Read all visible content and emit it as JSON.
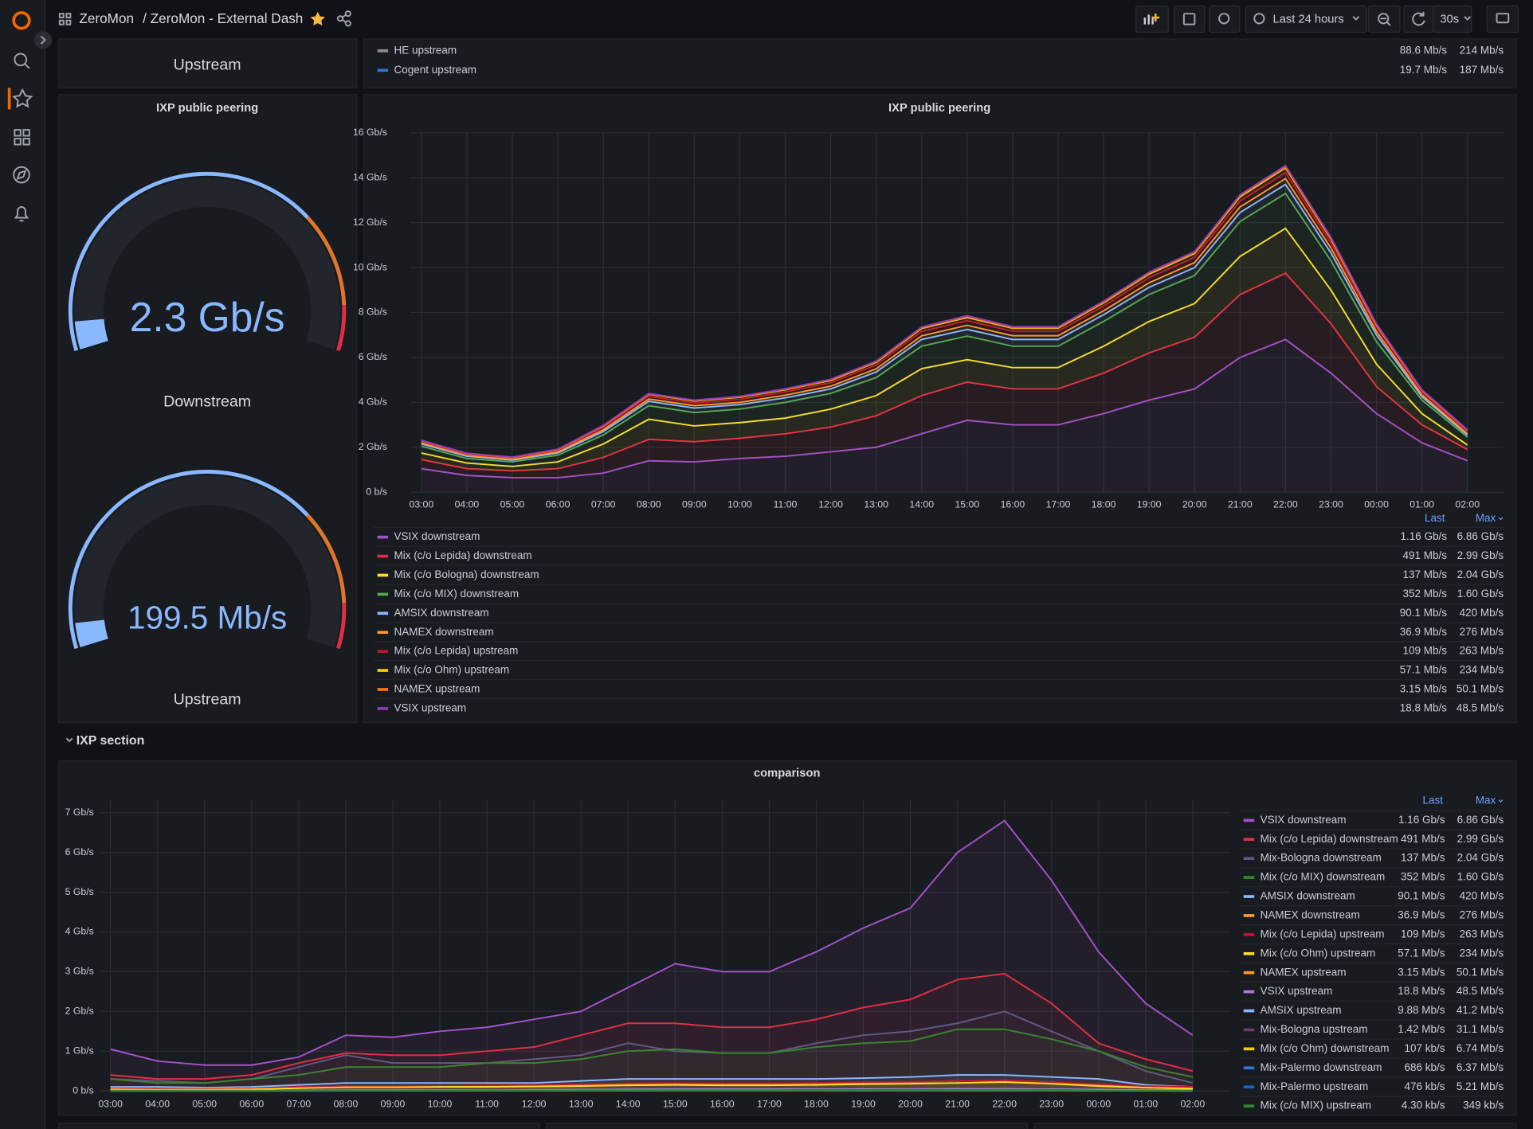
{
  "header": {
    "breadcrumb": "ZeroMon",
    "title": "/ ZeroMon - External Dash",
    "time_range": "Last 24 hours",
    "refresh": "30s"
  },
  "top_row": {
    "gauge_label": "Upstream",
    "legend": [
      {
        "name": "HE upstream",
        "color": "#8e8e8e",
        "last": "88.6 Mb/s",
        "max": "214 Mb/s"
      },
      {
        "name": "Cogent upstream",
        "color": "#3274d9",
        "last": "19.7 Mb/s",
        "max": "187 Mb/s"
      }
    ]
  },
  "gauges": {
    "title": "IXP public peering",
    "items": [
      {
        "value": 2.3,
        "value_label": "2.3 Gb/s",
        "max": 40,
        "label": "Downstream"
      },
      {
        "value": 199.5,
        "value_label": "199.5 Mb/s",
        "max": 4000,
        "label": "Upstream"
      }
    ]
  },
  "section": {
    "title": "IXP section"
  },
  "chart_data": [
    {
      "type": "line",
      "stacked": true,
      "title": "IXP public peering",
      "legend_headers": [
        "Last",
        "Max"
      ],
      "categories": [
        "03:00",
        "04:00",
        "05:00",
        "06:00",
        "07:00",
        "08:00",
        "09:00",
        "10:00",
        "11:00",
        "12:00",
        "13:00",
        "14:00",
        "15:00",
        "16:00",
        "17:00",
        "18:00",
        "19:00",
        "20:00",
        "21:00",
        "22:00",
        "23:00",
        "00:00",
        "01:00",
        "02:00"
      ],
      "ylim": [
        0,
        16
      ],
      "yticks": [
        {
          "value": 0,
          "label": "0 b/s"
        },
        {
          "value": 2,
          "label": "2 Gb/s"
        },
        {
          "value": 4,
          "label": "4 Gb/s"
        },
        {
          "value": 6,
          "label": "6 Gb/s"
        },
        {
          "value": 8,
          "label": "8 Gb/s"
        },
        {
          "value": 10,
          "label": "10 Gb/s"
        },
        {
          "value": 12,
          "label": "12 Gb/s"
        },
        {
          "value": 14,
          "label": "14 Gb/s"
        },
        {
          "value": 16,
          "label": "16 Gb/s"
        }
      ],
      "series": [
        {
          "name": "VSIX downstream",
          "color": "#a352cc",
          "last": "1.16 Gb/s",
          "max": "6.86 Gb/s",
          "values": [
            1.05,
            0.75,
            0.65,
            0.65,
            0.85,
            1.4,
            1.35,
            1.5,
            1.6,
            1.8,
            2.0,
            2.6,
            3.2,
            3.0,
            3.0,
            3.5,
            4.1,
            4.6,
            6.0,
            6.8,
            5.3,
            3.5,
            2.2,
            1.4
          ]
        },
        {
          "name": "Mix (c/o Lepida) downstream",
          "color": "#e02f44",
          "last": "491 Mb/s",
          "max": "2.99 Gb/s",
          "values": [
            0.4,
            0.3,
            0.3,
            0.4,
            0.7,
            0.95,
            0.9,
            0.9,
            1.0,
            1.1,
            1.4,
            1.7,
            1.7,
            1.6,
            1.6,
            1.8,
            2.1,
            2.3,
            2.8,
            2.95,
            2.2,
            1.2,
            0.8,
            0.5
          ]
        },
        {
          "name": "Mix (c/o Bologna) downstream",
          "color": "#fade2a",
          "last": "137 Mb/s",
          "max": "2.04 Gb/s",
          "values": [
            0.3,
            0.25,
            0.2,
            0.3,
            0.6,
            0.9,
            0.7,
            0.7,
            0.7,
            0.8,
            0.9,
            1.2,
            1.0,
            0.95,
            0.95,
            1.2,
            1.4,
            1.5,
            1.7,
            2.0,
            1.5,
            1.0,
            0.5,
            0.2
          ]
        },
        {
          "name": "Mix (c/o MIX) downstream",
          "color": "#56a64b",
          "last": "352 Mb/s",
          "max": "1.60 Gb/s",
          "values": [
            0.3,
            0.2,
            0.2,
            0.3,
            0.4,
            0.6,
            0.6,
            0.6,
            0.7,
            0.7,
            0.8,
            1.0,
            1.05,
            0.95,
            0.95,
            1.1,
            1.2,
            1.25,
            1.55,
            1.55,
            1.3,
            1.0,
            0.6,
            0.35
          ]
        },
        {
          "name": "AMSIX downstream",
          "color": "#8ab8ff",
          "last": "90.1 Mb/s",
          "max": "420 Mb/s",
          "values": [
            0.1,
            0.1,
            0.08,
            0.1,
            0.15,
            0.2,
            0.2,
            0.2,
            0.2,
            0.2,
            0.25,
            0.3,
            0.3,
            0.3,
            0.3,
            0.3,
            0.32,
            0.35,
            0.4,
            0.4,
            0.35,
            0.3,
            0.15,
            0.1
          ]
        },
        {
          "name": "NAMEX downstream",
          "color": "#ff9830",
          "last": "36.9 Mb/s",
          "max": "276 Mb/s",
          "values": [
            0.05,
            0.04,
            0.04,
            0.05,
            0.08,
            0.1,
            0.1,
            0.1,
            0.12,
            0.12,
            0.14,
            0.16,
            0.18,
            0.17,
            0.17,
            0.18,
            0.2,
            0.22,
            0.25,
            0.26,
            0.22,
            0.15,
            0.08,
            0.05
          ]
        },
        {
          "name": "Mix (c/o Lepida) upstream",
          "color": "#c4162a",
          "last": "109 Mb/s",
          "max": "263 Mb/s",
          "values": [
            0.06,
            0.05,
            0.05,
            0.06,
            0.1,
            0.12,
            0.12,
            0.13,
            0.14,
            0.15,
            0.17,
            0.19,
            0.2,
            0.19,
            0.19,
            0.2,
            0.22,
            0.23,
            0.25,
            0.26,
            0.22,
            0.17,
            0.12,
            0.1
          ]
        },
        {
          "name": "Mix (c/o Ohm) upstream",
          "color": "#f2cc0c",
          "last": "57.1 Mb/s",
          "max": "234 Mb/s",
          "values": [
            0.04,
            0.03,
            0.03,
            0.04,
            0.07,
            0.09,
            0.09,
            0.1,
            0.1,
            0.11,
            0.12,
            0.14,
            0.15,
            0.14,
            0.14,
            0.15,
            0.17,
            0.18,
            0.2,
            0.22,
            0.18,
            0.12,
            0.08,
            0.06
          ]
        },
        {
          "name": "NAMEX upstream",
          "color": "#ff780a",
          "last": "3.15 Mb/s",
          "max": "50.1 Mb/s",
          "values": [
            0.005,
            0.005,
            0.005,
            0.006,
            0.01,
            0.015,
            0.02,
            0.02,
            0.02,
            0.025,
            0.03,
            0.03,
            0.035,
            0.03,
            0.03,
            0.035,
            0.04,
            0.04,
            0.045,
            0.05,
            0.04,
            0.02,
            0.01,
            0.005
          ]
        },
        {
          "name": "VSIX upstream",
          "color": "#8f3bb8",
          "last": "18.8 Mb/s",
          "max": "48.5 Mb/s",
          "values": [
            0.01,
            0.01,
            0.01,
            0.01,
            0.015,
            0.02,
            0.02,
            0.02,
            0.025,
            0.025,
            0.03,
            0.035,
            0.04,
            0.04,
            0.04,
            0.04,
            0.045,
            0.045,
            0.048,
            0.048,
            0.04,
            0.03,
            0.02,
            0.02
          ]
        }
      ]
    },
    {
      "type": "line",
      "stacked": false,
      "title": "comparison",
      "legend_headers": [
        "Last",
        "Max"
      ],
      "categories": [
        "03:00",
        "04:00",
        "05:00",
        "06:00",
        "07:00",
        "08:00",
        "09:00",
        "10:00",
        "11:00",
        "12:00",
        "13:00",
        "14:00",
        "15:00",
        "16:00",
        "17:00",
        "18:00",
        "19:00",
        "20:00",
        "21:00",
        "22:00",
        "23:00",
        "00:00",
        "01:00",
        "02:00"
      ],
      "ylim": [
        0,
        7.3
      ],
      "yticks": [
        {
          "value": 0,
          "label": "0 b/s"
        },
        {
          "value": 1,
          "label": "1 Gb/s"
        },
        {
          "value": 2,
          "label": "2 Gb/s"
        },
        {
          "value": 3,
          "label": "3 Gb/s"
        },
        {
          "value": 4,
          "label": "4 Gb/s"
        },
        {
          "value": 5,
          "label": "5 Gb/s"
        },
        {
          "value": 6,
          "label": "6 Gb/s"
        },
        {
          "value": 7,
          "label": "7 Gb/s"
        }
      ],
      "series": [
        {
          "name": "VSIX downstream",
          "color": "#a352cc",
          "last": "1.16 Gb/s",
          "max": "6.86 Gb/s",
          "values": [
            1.05,
            0.75,
            0.65,
            0.65,
            0.85,
            1.4,
            1.35,
            1.5,
            1.6,
            1.8,
            2.0,
            2.6,
            3.2,
            3.0,
            3.0,
            3.5,
            4.1,
            4.6,
            6.0,
            6.8,
            5.3,
            3.5,
            2.2,
            1.4
          ]
        },
        {
          "name": "Mix (c/o Lepida) downstream",
          "color": "#e02f44",
          "last": "491 Mb/s",
          "max": "2.99 Gb/s",
          "values": [
            0.4,
            0.3,
            0.3,
            0.4,
            0.7,
            0.95,
            0.9,
            0.9,
            1.0,
            1.1,
            1.4,
            1.7,
            1.7,
            1.6,
            1.6,
            1.8,
            2.1,
            2.3,
            2.8,
            2.95,
            2.2,
            1.2,
            0.8,
            0.5
          ]
        },
        {
          "name": "Mix-Bologna downstream",
          "color": "#5f5a83",
          "last": "137 Mb/s",
          "max": "2.04 Gb/s",
          "values": [
            0.3,
            0.25,
            0.2,
            0.3,
            0.6,
            0.9,
            0.7,
            0.7,
            0.7,
            0.8,
            0.9,
            1.2,
            1.0,
            0.95,
            0.95,
            1.2,
            1.4,
            1.5,
            1.7,
            2.0,
            1.5,
            1.0,
            0.5,
            0.2
          ]
        },
        {
          "name": "Mix (c/o MIX) downstream",
          "color": "#37872d",
          "last": "352 Mb/s",
          "max": "1.60 Gb/s",
          "values": [
            0.3,
            0.2,
            0.2,
            0.3,
            0.4,
            0.6,
            0.6,
            0.6,
            0.7,
            0.7,
            0.8,
            1.0,
            1.05,
            0.95,
            0.95,
            1.1,
            1.2,
            1.25,
            1.55,
            1.55,
            1.3,
            1.0,
            0.6,
            0.35
          ]
        },
        {
          "name": "AMSIX downstream",
          "color": "#8ab8ff",
          "last": "90.1 Mb/s",
          "max": "420 Mb/s",
          "values": [
            0.1,
            0.1,
            0.08,
            0.1,
            0.15,
            0.2,
            0.2,
            0.2,
            0.2,
            0.2,
            0.25,
            0.3,
            0.3,
            0.3,
            0.3,
            0.3,
            0.32,
            0.35,
            0.4,
            0.4,
            0.35,
            0.3,
            0.15,
            0.1
          ]
        },
        {
          "name": "NAMEX downstream",
          "color": "#ff9830",
          "last": "36.9 Mb/s",
          "max": "276 Mb/s",
          "values": [
            0.05,
            0.04,
            0.04,
            0.05,
            0.08,
            0.1,
            0.1,
            0.1,
            0.12,
            0.12,
            0.14,
            0.16,
            0.18,
            0.17,
            0.17,
            0.18,
            0.2,
            0.22,
            0.25,
            0.26,
            0.22,
            0.15,
            0.08,
            0.05
          ]
        },
        {
          "name": "Mix (c/o Lepida) upstream",
          "color": "#c4162a",
          "last": "109 Mb/s",
          "max": "263 Mb/s",
          "values": [
            0.06,
            0.05,
            0.05,
            0.06,
            0.1,
            0.12,
            0.12,
            0.13,
            0.14,
            0.15,
            0.17,
            0.19,
            0.2,
            0.19,
            0.19,
            0.2,
            0.22,
            0.23,
            0.25,
            0.26,
            0.22,
            0.17,
            0.12,
            0.1
          ]
        },
        {
          "name": "Mix (c/o Ohm) upstream",
          "color": "#fade2a",
          "last": "57.1 Mb/s",
          "max": "234 Mb/s",
          "values": [
            0.04,
            0.03,
            0.03,
            0.04,
            0.07,
            0.09,
            0.09,
            0.1,
            0.1,
            0.11,
            0.12,
            0.14,
            0.15,
            0.14,
            0.14,
            0.15,
            0.17,
            0.18,
            0.2,
            0.22,
            0.18,
            0.12,
            0.08,
            0.06
          ]
        },
        {
          "name": "NAMEX upstream",
          "color": "#ff9830",
          "last": "3.15 Mb/s",
          "max": "50.1 Mb/s",
          "values": [
            0.005,
            0.005,
            0.005,
            0.006,
            0.01,
            0.015,
            0.02,
            0.02,
            0.02,
            0.025,
            0.03,
            0.03,
            0.035,
            0.03,
            0.03,
            0.035,
            0.04,
            0.04,
            0.045,
            0.05,
            0.04,
            0.02,
            0.01,
            0.005
          ]
        },
        {
          "name": "VSIX upstream",
          "color": "#b877d9",
          "last": "18.8 Mb/s",
          "max": "48.5 Mb/s",
          "values": [
            0.01,
            0.01,
            0.01,
            0.01,
            0.015,
            0.02,
            0.02,
            0.02,
            0.025,
            0.025,
            0.03,
            0.035,
            0.04,
            0.04,
            0.04,
            0.04,
            0.045,
            0.045,
            0.048,
            0.048,
            0.04,
            0.03,
            0.02,
            0.02
          ]
        },
        {
          "name": "AMSIX upstream",
          "color": "#8ab8ff",
          "last": "9.88 Mb/s",
          "max": "41.2 Mb/s",
          "values": [
            0.01,
            0.008,
            0.008,
            0.01,
            0.015,
            0.02,
            0.02,
            0.02,
            0.02,
            0.025,
            0.025,
            0.03,
            0.03,
            0.03,
            0.03,
            0.03,
            0.035,
            0.035,
            0.04,
            0.04,
            0.035,
            0.03,
            0.015,
            0.01
          ]
        },
        {
          "name": "Mix-Bologna upstream",
          "color": "#6e3a6e",
          "last": "1.42 Mb/s",
          "max": "31.1 Mb/s",
          "values": [
            0.005,
            0.005,
            0.005,
            0.006,
            0.01,
            0.012,
            0.012,
            0.012,
            0.014,
            0.015,
            0.016,
            0.018,
            0.02,
            0.02,
            0.02,
            0.022,
            0.024,
            0.026,
            0.028,
            0.03,
            0.025,
            0.015,
            0.008,
            0.002
          ]
        },
        {
          "name": "Mix (c/o Ohm) downstream",
          "color": "#f2cc0c",
          "last": "107 kb/s",
          "max": "6.74 Mb/s",
          "values": [
            0.001,
            0.001,
            0.001,
            0.001,
            0.002,
            0.003,
            0.003,
            0.003,
            0.003,
            0.004,
            0.004,
            0.005,
            0.005,
            0.005,
            0.005,
            0.005,
            0.006,
            0.006,
            0.006,
            0.0067,
            0.006,
            0.004,
            0.002,
            0.0001
          ]
        },
        {
          "name": "Mix-Palermo downstream",
          "color": "#3274d9",
          "last": "686 kb/s",
          "max": "6.37 Mb/s",
          "values": [
            0.0005,
            0.0005,
            0.0005,
            0.0006,
            0.001,
            0.002,
            0.002,
            0.002,
            0.003,
            0.003,
            0.003,
            0.004,
            0.004,
            0.004,
            0.004,
            0.004,
            0.005,
            0.005,
            0.006,
            0.0063,
            0.005,
            0.003,
            0.001,
            0.0007
          ]
        },
        {
          "name": "Mix-Palermo upstream",
          "color": "#1f60c4",
          "last": "476 kb/s",
          "max": "5.21 Mb/s",
          "values": [
            0.0004,
            0.0004,
            0.0004,
            0.0005,
            0.0008,
            0.0015,
            0.0015,
            0.0015,
            0.0025,
            0.0025,
            0.0025,
            0.003,
            0.003,
            0.003,
            0.003,
            0.003,
            0.004,
            0.004,
            0.005,
            0.0052,
            0.004,
            0.0025,
            0.0008,
            0.0005
          ]
        },
        {
          "name": "Mix (c/o MIX) upstream",
          "color": "#37872d",
          "last": "4.30 kb/s",
          "max": "349 kb/s",
          "values": [
            5e-05,
            5e-05,
            5e-05,
            6e-05,
            0.0001,
            0.00012,
            0.00012,
            0.00012,
            0.00014,
            0.00015,
            0.00016,
            0.00018,
            0.0002,
            0.0002,
            0.0002,
            0.00022,
            0.00024,
            0.00026,
            0.0003,
            0.00034,
            0.0003,
            0.0002,
            0.0001,
            4e-06
          ]
        }
      ]
    }
  ]
}
